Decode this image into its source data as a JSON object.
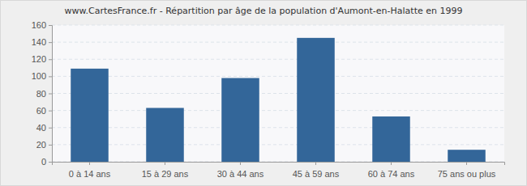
{
  "chart_data": {
    "type": "bar",
    "title": "www.CartesFrance.fr - Répartition par âge de la population d'Aumont-en-Halatte en 1999",
    "categories": [
      "0 à 14 ans",
      "15 à 29 ans",
      "30 à 44 ans",
      "45 à 59 ans",
      "60 à 74 ans",
      "75 ans ou plus"
    ],
    "values": [
      109,
      63,
      98,
      145,
      53,
      14
    ],
    "color": "#336699",
    "ylim": [
      0,
      160
    ],
    "yticks": [
      0,
      20,
      40,
      60,
      80,
      100,
      120,
      140,
      160
    ],
    "grid": true
  }
}
